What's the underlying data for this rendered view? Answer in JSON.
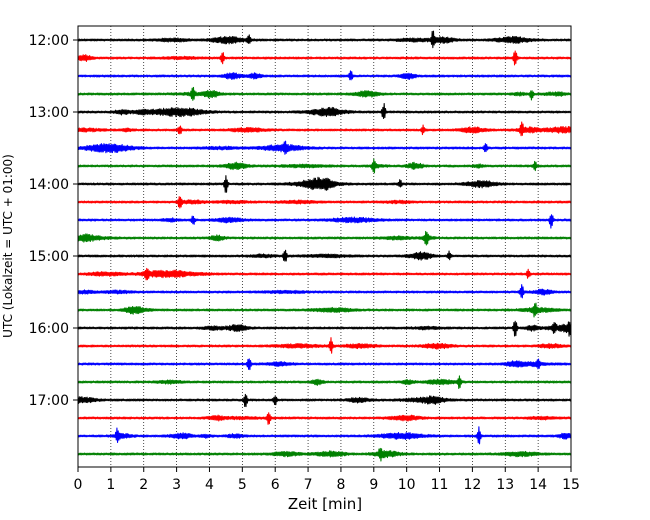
{
  "chart_data": {
    "type": "line",
    "title": "",
    "xlabel": "Zeit  [min]",
    "ylabel": "UTC (Lokalzeit = UTC + 01:00)",
    "xlim": [
      0,
      15
    ],
    "x_ticks": [
      "0",
      "1",
      "2",
      "3",
      "4",
      "5",
      "6",
      "7",
      "8",
      "9",
      "10",
      "11",
      "12",
      "13",
      "14",
      "15"
    ],
    "y_ticks": [
      "12:00",
      "13:00",
      "14:00",
      "15:00",
      "16:00",
      "17:00"
    ],
    "grid": "vertical dotted",
    "legend": "none",
    "trace_interval_minutes": 15,
    "start_utc": "12:00",
    "end_utc": "17:45",
    "colors": [
      "#000000",
      "#ff0000",
      "#0000ff",
      "#008000"
    ],
    "series": [
      {
        "start": "12:00",
        "color": "#000000",
        "spikes": [
          {
            "t": 10.8,
            "amp": 1.0
          },
          {
            "t": 5.2,
            "amp": 0.5
          }
        ]
      },
      {
        "start": "12:15",
        "color": "#ff0000",
        "spikes": [
          {
            "t": 4.4,
            "amp": 0.7
          },
          {
            "t": 13.3,
            "amp": 1.0
          }
        ]
      },
      {
        "start": "12:30",
        "color": "#0000ff",
        "spikes": [
          {
            "t": 8.3,
            "amp": 0.6
          }
        ]
      },
      {
        "start": "12:45",
        "color": "#008000",
        "spikes": [
          {
            "t": 3.5,
            "amp": 0.8
          },
          {
            "t": 13.8,
            "amp": 0.6
          }
        ]
      },
      {
        "start": "13:00",
        "color": "#000000",
        "spikes": [
          {
            "t": 9.3,
            "amp": 1.0
          }
        ]
      },
      {
        "start": "13:15",
        "color": "#ff0000",
        "spikes": [
          {
            "t": 3.1,
            "amp": 0.6
          },
          {
            "t": 10.5,
            "amp": 0.5
          },
          {
            "t": 13.5,
            "amp": 0.9
          }
        ]
      },
      {
        "start": "13:30",
        "color": "#0000ff",
        "spikes": [
          {
            "t": 6.3,
            "amp": 0.6
          },
          {
            "t": 12.4,
            "amp": 0.7
          }
        ]
      },
      {
        "start": "13:45",
        "color": "#008000",
        "spikes": [
          {
            "t": 9.0,
            "amp": 0.8
          },
          {
            "t": 13.9,
            "amp": 0.5
          }
        ]
      },
      {
        "start": "14:00",
        "color": "#000000",
        "spikes": [
          {
            "t": 4.5,
            "amp": 1.0
          },
          {
            "t": 9.8,
            "amp": 0.5
          }
        ]
      },
      {
        "start": "14:15",
        "color": "#ff0000",
        "spikes": [
          {
            "t": 3.1,
            "amp": 0.8
          }
        ]
      },
      {
        "start": "14:30",
        "color": "#0000ff",
        "spikes": [
          {
            "t": 3.5,
            "amp": 0.6
          },
          {
            "t": 14.4,
            "amp": 1.0
          }
        ]
      },
      {
        "start": "14:45",
        "color": "#008000",
        "spikes": [
          {
            "t": 10.6,
            "amp": 0.8
          }
        ]
      },
      {
        "start": "15:00",
        "color": "#000000",
        "spikes": [
          {
            "t": 6.3,
            "amp": 0.9
          },
          {
            "t": 11.3,
            "amp": 0.5
          }
        ]
      },
      {
        "start": "15:15",
        "color": "#ff0000",
        "spikes": [
          {
            "t": 2.1,
            "amp": 0.9
          },
          {
            "t": 13.7,
            "amp": 0.5
          }
        ]
      },
      {
        "start": "15:30",
        "color": "#0000ff",
        "spikes": [
          {
            "t": 13.5,
            "amp": 1.0
          }
        ]
      },
      {
        "start": "15:45",
        "color": "#008000",
        "spikes": [
          {
            "t": 13.9,
            "amp": 0.8
          }
        ]
      },
      {
        "start": "16:00",
        "color": "#000000",
        "spikes": [
          {
            "t": 13.3,
            "amp": 1.0
          },
          {
            "t": 14.5,
            "amp": 0.6
          },
          {
            "t": 14.95,
            "amp": 0.5
          }
        ]
      },
      {
        "start": "16:15",
        "color": "#ff0000",
        "spikes": [
          {
            "t": 7.7,
            "amp": 0.9
          }
        ]
      },
      {
        "start": "16:30",
        "color": "#0000ff",
        "spikes": [
          {
            "t": 5.2,
            "amp": 1.0
          },
          {
            "t": 14.0,
            "amp": 0.5
          }
        ]
      },
      {
        "start": "16:45",
        "color": "#008000",
        "spikes": [
          {
            "t": 11.6,
            "amp": 0.8
          }
        ]
      },
      {
        "start": "17:00",
        "color": "#000000",
        "spikes": [
          {
            "t": 5.1,
            "amp": 0.9
          },
          {
            "t": 6.0,
            "amp": 0.6
          }
        ]
      },
      {
        "start": "17:15",
        "color": "#ff0000",
        "spikes": [
          {
            "t": 5.8,
            "amp": 0.8
          }
        ]
      },
      {
        "start": "17:30",
        "color": "#0000ff",
        "spikes": [
          {
            "t": 1.2,
            "amp": 0.8
          },
          {
            "t": 12.2,
            "amp": 1.0
          }
        ]
      },
      {
        "start": "17:45",
        "color": "#008000",
        "spikes": [
          {
            "t": 9.2,
            "amp": 0.6
          }
        ]
      }
    ]
  }
}
